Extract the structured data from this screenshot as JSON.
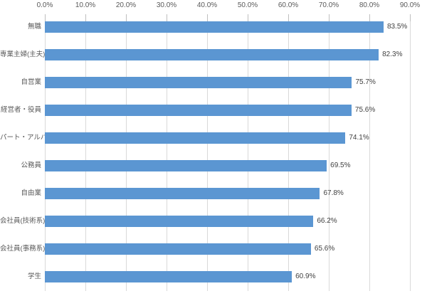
{
  "chart_data": {
    "type": "bar",
    "orientation": "horizontal",
    "title": "",
    "xlabel": "",
    "ylabel": "",
    "categories": [
      "無職",
      "専業主婦(主夫)",
      "自営業",
      "経営者・役員",
      "パート・アルバイト",
      "公務員",
      "自由業",
      "会社員(技術系)",
      "会社員(事務系)",
      "学生"
    ],
    "values": [
      83.5,
      82.3,
      75.7,
      75.6,
      74.1,
      69.5,
      67.8,
      66.2,
      65.6,
      60.9
    ],
    "value_labels": [
      "83.5%",
      "82.3%",
      "75.7%",
      "75.6%",
      "74.1%",
      "69.5%",
      "67.8%",
      "66.2%",
      "65.6%",
      "60.9%"
    ],
    "x_axis": {
      "position": "top",
      "min": 0,
      "max": 90,
      "tick_step": 10,
      "tick_labels": [
        "0.0%",
        "10.0%",
        "20.0%",
        "30.0%",
        "40.0%",
        "50.0%",
        "60.0%",
        "70.0%",
        "80.0%",
        "90.0%"
      ]
    },
    "grid": true,
    "legend": false,
    "colors": {
      "bar": "#5B96D2",
      "gridline": "#D9D9D9",
      "tick_mark": "#BFBFBF",
      "axis_text": "#595959",
      "category_text": "#595959",
      "value_text": "#404040",
      "background": "#FFFFFF"
    }
  }
}
